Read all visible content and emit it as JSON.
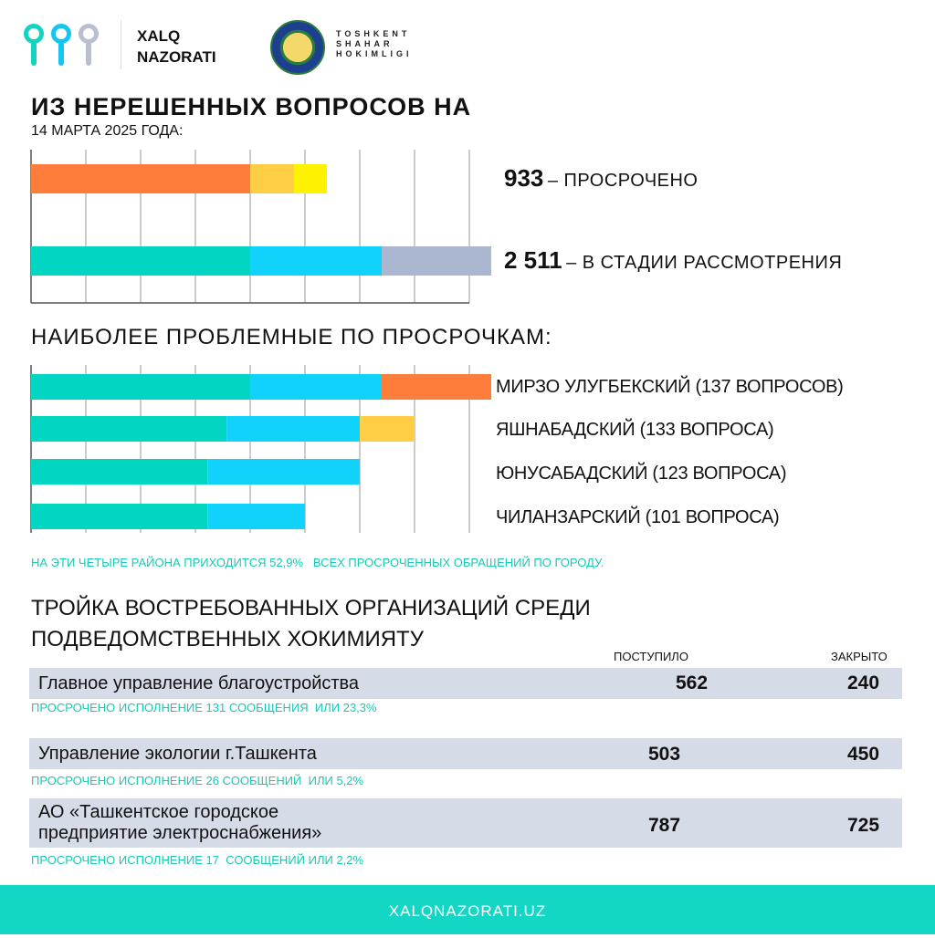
{
  "header": {
    "brand_line1": "XALQ",
    "brand_line2": "NAZORATI",
    "hokimlik_line1": "TOSHKENT",
    "hokimlik_line2": "SHAHAR",
    "hokimlik_line3": "HOKIMLIGI"
  },
  "section1": {
    "title": "ИЗ НЕРЕШЕННЫХ ВОПРОСОВ НА",
    "date": "14 МАРТА 2025 ГОДА:"
  },
  "section2": {
    "title": "НАИБОЛЕЕ ПРОБЛЕМНЫЕ ПО ПРОСРОЧКАМ:",
    "note": "НА ЭТИ ЧЕТЫРЕ РАЙОНА ПРИХОДИТСЯ 52,9%   ВСЕХ ПРОСРОЧЕННЫХ ОБРАЩЕНИЙ ПО ГОРОДУ."
  },
  "section3": {
    "title_line1": "ТРОЙКА ВОСТРЕБОВАННЫХ ОРГАНИЗАЦИЙ СРЕДИ",
    "title_line2": "ПОДВЕДОМСТВЕННЫХ ХОКИМИЯТУ",
    "col_received": "ПОСТУПИЛО",
    "col_closed": "ЗАКРЫТО",
    "rows": [
      {
        "name_line1": "Главное управление благоустройства",
        "name_line2": "",
        "received": "562",
        "closed": "240",
        "overdue": "ПРОСРОЧЕНО ИСПОЛНЕНИЕ 131 СООБЩЕНИЯ  ИЛИ 23,3%"
      },
      {
        "name_line1": "Управление экологии г.Ташкента",
        "name_line2": "",
        "received": "503",
        "closed": "450",
        "overdue": "ПРОСРОЧЕНО ИСПОЛНЕНИЕ 26 СООБЩЕНИЙ  ИЛИ 5,2%"
      },
      {
        "name_line1": "АО «Ташкентское городское",
        "name_line2": "предприятие электроснабжения»",
        "received": "787",
        "closed": "725",
        "overdue": "ПРОСРОЧЕНО ИСПОЛНЕНИЕ 17  СООБЩЕНИЙ ИЛИ 2,2%"
      }
    ]
  },
  "footer": {
    "url": "XALQNAZORATI.UZ"
  },
  "colors": {
    "teal": "#00d6c2",
    "blue": "#10d2fb",
    "grey": "#abb6d1",
    "orange": "#ff7d3b",
    "light_orange": "#ffce45",
    "yellow": "#fff200",
    "text_accent": "#18c9b4"
  },
  "chart_data": [
    {
      "type": "bar",
      "orientation": "horizontal",
      "stacked": true,
      "grid": true,
      "xlim": [
        0,
        8
      ],
      "categories": [
        "933",
        "2 511"
      ],
      "labels": [
        "– ПРОСРОЧЕНО",
        "– В СТАДИИ РАССМОТРЕНИЯ"
      ],
      "bars": [
        {
          "segments": [
            {
              "value": 4.0,
              "color": "#ff7d3b"
            },
            {
              "value": 0.8,
              "color": "#ffce45"
            },
            {
              "value": 0.6,
              "color": "#fff200"
            }
          ]
        },
        {
          "segments": [
            {
              "value": 4.0,
              "color": "#00d6c2"
            },
            {
              "value": 2.4,
              "color": "#10d2fb"
            },
            {
              "value": 2.0,
              "color": "#abb6d1"
            }
          ]
        }
      ]
    },
    {
      "type": "bar",
      "orientation": "horizontal",
      "stacked": true,
      "grid": true,
      "xlim": [
        0,
        8
      ],
      "categories": [
        "МИРЗО УЛУГБЕКСКИЙ (137 ВОПРОСОВ)",
        "ЯШНАБАДСКИЙ (133 ВОПРОСА)",
        "ЮНУСАБАДСКИЙ (123 ВОПРОСА)",
        "ЧИЛАНЗАРСКИЙ (101 ВОПРОСА)"
      ],
      "bars": [
        {
          "segments": [
            {
              "value": 4.0,
              "color": "#00d6c2"
            },
            {
              "value": 2.4,
              "color": "#10d2fb"
            },
            {
              "value": 2.0,
              "color": "#ff7d3b"
            }
          ]
        },
        {
          "segments": [
            {
              "value": 3.57,
              "color": "#00d6c2"
            },
            {
              "value": 2.43,
              "color": "#10d2fb"
            },
            {
              "value": 1.0,
              "color": "#ffce45"
            }
          ]
        },
        {
          "segments": [
            {
              "value": 3.22,
              "color": "#00d6c2"
            },
            {
              "value": 2.78,
              "color": "#10d2fb"
            }
          ]
        },
        {
          "segments": [
            {
              "value": 3.22,
              "color": "#00d6c2"
            },
            {
              "value": 1.78,
              "color": "#10d2fb"
            }
          ]
        }
      ]
    }
  ]
}
